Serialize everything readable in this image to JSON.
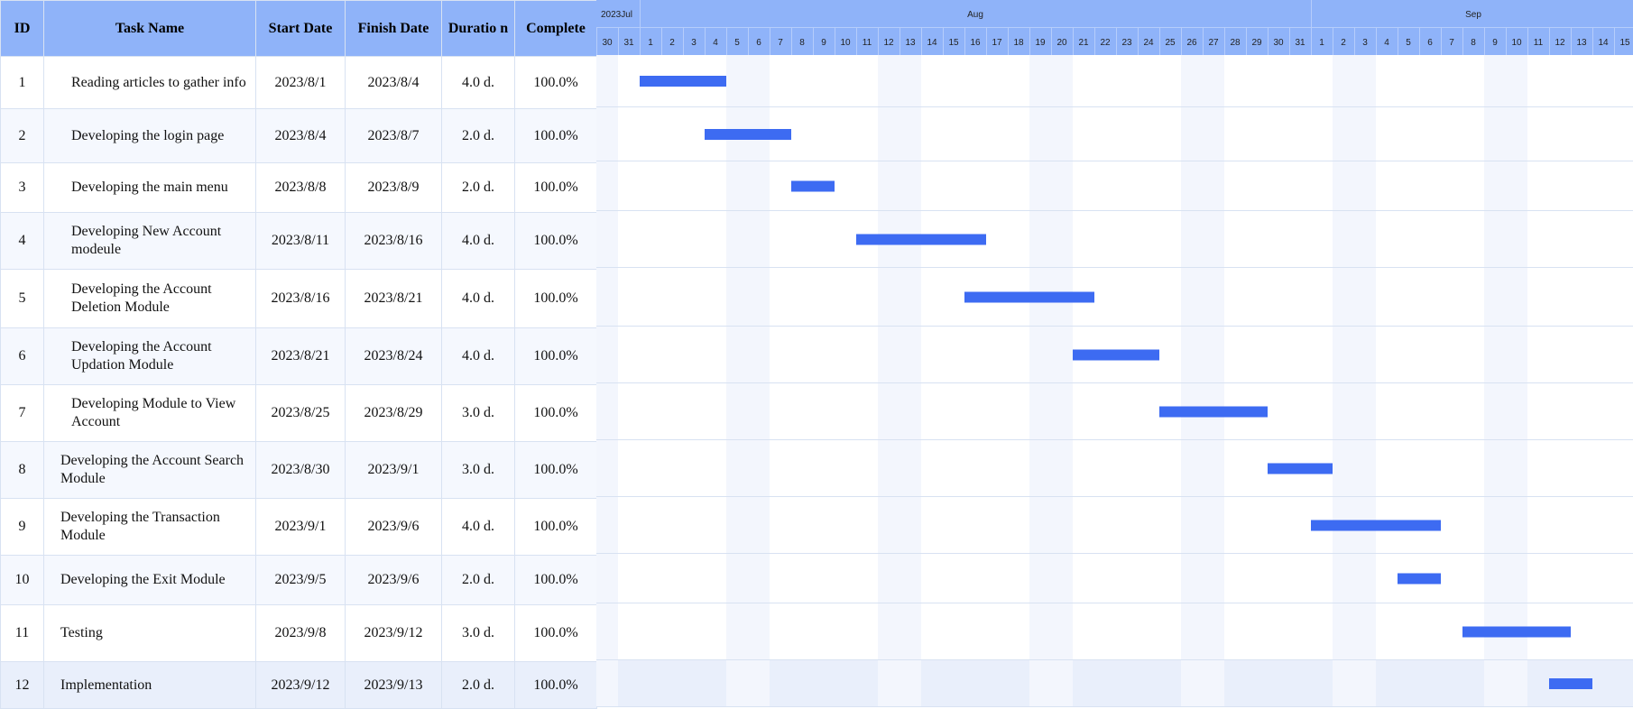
{
  "columns": {
    "id": "ID",
    "task_name": "Task Name",
    "start_date": "Start Date",
    "finish_date": "Finish Date",
    "duration": "Duratio n",
    "complete": "Complete"
  },
  "timeline": {
    "months": [
      {
        "label": "2023Jul",
        "start": "2023-07-30",
        "end": "2023-07-31"
      },
      {
        "label": "Aug",
        "start": "2023-08-01",
        "end": "2023-08-31"
      },
      {
        "label": "Sep",
        "start": "2023-09-01",
        "end": "2023-09-15"
      }
    ],
    "start": "2023-07-30",
    "end": "2023-09-15",
    "weekend_shading": true
  },
  "colors": {
    "header_bg": "#8fb3f9",
    "bar": "#3d6bf2",
    "grid_line": "#d8e2f2",
    "weekend": "#f3f6fd",
    "row_alt": "#f5f8fe"
  },
  "chart_data": {
    "type": "gantt",
    "x_axis": "date",
    "xlim": [
      "2023-07-30",
      "2023-09-15"
    ],
    "tasks": [
      {
        "id": "1",
        "name": "Reading articles to gather info",
        "indent": 2,
        "start_date": "2023/8/1",
        "finish_date": "2023/8/4",
        "duration": "4.0 d.",
        "complete": "100.0%",
        "start": "2023-08-01",
        "end": "2023-08-04"
      },
      {
        "id": "2",
        "name": "Developing the login page",
        "indent": 2,
        "start_date": "2023/8/4",
        "finish_date": "2023/8/7",
        "duration": "2.0 d.",
        "complete": "100.0%",
        "start": "2023-08-04",
        "end": "2023-08-07"
      },
      {
        "id": "3",
        "name": "Developing the main menu",
        "indent": 2,
        "start_date": "2023/8/8",
        "finish_date": "2023/8/9",
        "duration": "2.0 d.",
        "complete": "100.0%",
        "start": "2023-08-08",
        "end": "2023-08-09"
      },
      {
        "id": "4",
        "name": "Developing New Account modeule",
        "indent": 2,
        "start_date": "2023/8/11",
        "finish_date": "2023/8/16",
        "duration": "4.0 d.",
        "complete": "100.0%",
        "start": "2023-08-11",
        "end": "2023-08-16"
      },
      {
        "id": "5",
        "name": "Developing the Account Deletion Module",
        "indent": 2,
        "start_date": "2023/8/16",
        "finish_date": "2023/8/21",
        "duration": "4.0 d.",
        "complete": "100.0%",
        "start": "2023-08-16",
        "end": "2023-08-21"
      },
      {
        "id": "6",
        "name": "Developing the Account Updation Module",
        "indent": 2,
        "start_date": "2023/8/21",
        "finish_date": "2023/8/24",
        "duration": "4.0 d.",
        "complete": "100.0%",
        "start": "2023-08-21",
        "end": "2023-08-24"
      },
      {
        "id": "7",
        "name": "Developing Module to View Account",
        "indent": 2,
        "start_date": "2023/8/25",
        "finish_date": "2023/8/29",
        "duration": "3.0 d.",
        "complete": "100.0%",
        "start": "2023-08-25",
        "end": "2023-08-29"
      },
      {
        "id": "8",
        "name": "Developing the Account Search Module",
        "indent": 1,
        "start_date": "2023/8/30",
        "finish_date": "2023/9/1",
        "duration": "3.0 d.",
        "complete": "100.0%",
        "start": "2023-08-30",
        "end": "2023-09-01"
      },
      {
        "id": "9",
        "name": "Developing the Transaction Module",
        "indent": 1,
        "start_date": "2023/9/1",
        "finish_date": "2023/9/6",
        "duration": "4.0 d.",
        "complete": "100.0%",
        "start": "2023-09-01",
        "end": "2023-09-06"
      },
      {
        "id": "10",
        "name": "Developing the Exit Module",
        "indent": 1,
        "start_date": "2023/9/5",
        "finish_date": "2023/9/6",
        "duration": "2.0 d.",
        "complete": "100.0%",
        "start": "2023-09-05",
        "end": "2023-09-06"
      },
      {
        "id": "11",
        "name": "Testing",
        "indent": 1,
        "start_date": "2023/9/8",
        "finish_date": "2023/9/12",
        "duration": "3.0 d.",
        "complete": "100.0%",
        "start": "2023-09-08",
        "end": "2023-09-12"
      },
      {
        "id": "12",
        "name": "Implementation",
        "indent": 1,
        "start_date": "2023/9/12",
        "finish_date": "2023/9/13",
        "duration": "2.0 d.",
        "complete": "100.0%",
        "start": "2023-09-12",
        "end": "2023-09-13"
      }
    ]
  }
}
